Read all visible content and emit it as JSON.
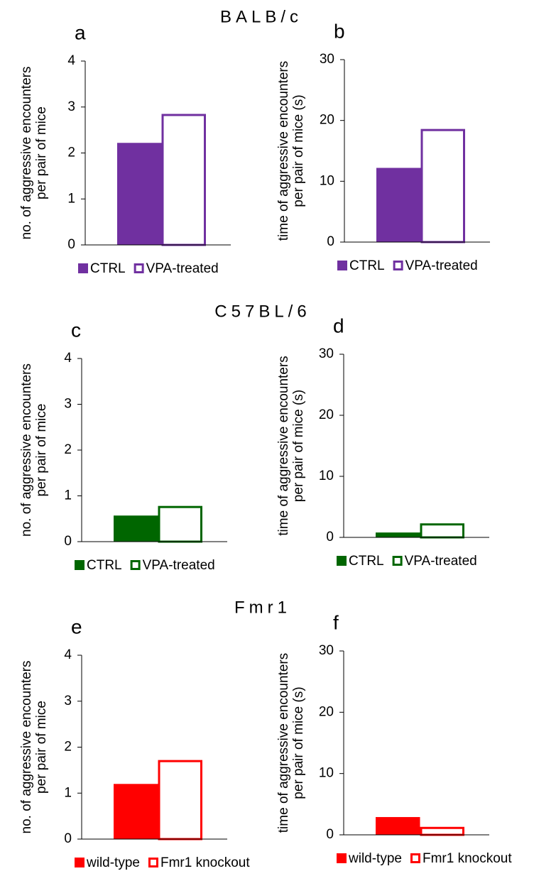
{
  "group_titles": [
    "BALB/c",
    "C57BL/6",
    "Fmr1"
  ],
  "chart_data": [
    {
      "type": "bar",
      "panel": "a",
      "ylabel": [
        "no. of aggressive encounters",
        "per pair of mice"
      ],
      "categories": [
        null
      ],
      "ylim": [
        0,
        4
      ],
      "yticks": [
        0,
        1,
        2,
        3,
        4
      ],
      "grid": false,
      "series": [
        {
          "name": "CTRL",
          "color": "#7030a0",
          "style": "filled",
          "values": [
            2.22
          ]
        },
        {
          "name": "VPA-treated",
          "color": "#7030a0",
          "style": "outline",
          "values": [
            2.85
          ]
        }
      ]
    },
    {
      "type": "bar",
      "panel": "b",
      "ylabel": [
        "time of aggressive encounters",
        "per pair of mice (s)"
      ],
      "categories": [
        null
      ],
      "ylim": [
        0,
        30
      ],
      "yticks": [
        0,
        10,
        20,
        30
      ],
      "grid": false,
      "series": [
        {
          "name": "CTRL",
          "color": "#7030a0",
          "style": "filled",
          "values": [
            12.2
          ]
        },
        {
          "name": "VPA-treated",
          "color": "#7030a0",
          "style": "outline",
          "values": [
            18.6
          ]
        }
      ]
    },
    {
      "type": "bar",
      "panel": "c",
      "ylabel": [
        "no. of aggressive encounters",
        "per pair of mice"
      ],
      "categories": [
        null
      ],
      "ylim": [
        0,
        4
      ],
      "yticks": [
        0,
        1,
        2,
        3,
        4
      ],
      "grid": false,
      "series": [
        {
          "name": "CTRL",
          "color": "#006600",
          "style": "filled",
          "values": [
            0.57
          ]
        },
        {
          "name": "VPA-treated",
          "color": "#006600",
          "style": "outline",
          "values": [
            0.78
          ]
        }
      ]
    },
    {
      "type": "bar",
      "panel": "d",
      "ylabel": [
        "time of aggressive encounters",
        "per pair of mice (s)"
      ],
      "categories": [
        null
      ],
      "ylim": [
        0,
        30
      ],
      "yticks": [
        0,
        10,
        20,
        30
      ],
      "grid": false,
      "series": [
        {
          "name": "CTRL",
          "color": "#006600",
          "style": "filled",
          "values": [
            0.8
          ]
        },
        {
          "name": "VPA-treated",
          "color": "#006600",
          "style": "outline",
          "values": [
            2.3
          ]
        }
      ]
    },
    {
      "type": "bar",
      "panel": "e",
      "ylabel": [
        "no. of aggressive encounters",
        "per pair of mice"
      ],
      "categories": [
        null
      ],
      "ylim": [
        0,
        4
      ],
      "yticks": [
        0,
        1,
        2,
        3,
        4
      ],
      "grid": false,
      "series": [
        {
          "name": "wild-type",
          "color": "#ff0000",
          "style": "filled",
          "values": [
            1.2
          ]
        },
        {
          "name": "Fmr1 knockout",
          "color": "#ff0000",
          "style": "outline",
          "values": [
            1.72
          ]
        }
      ]
    },
    {
      "type": "bar",
      "panel": "f",
      "ylabel": [
        "time of aggressive encounters",
        "per pair of mice (s)"
      ],
      "categories": [
        null
      ],
      "ylim": [
        0,
        30
      ],
      "yticks": [
        0,
        10,
        20,
        30
      ],
      "grid": false,
      "series": [
        {
          "name": "wild-type",
          "color": "#ff0000",
          "style": "filled",
          "values": [
            2.9
          ]
        },
        {
          "name": "Fmr1 knockout",
          "color": "#ff0000",
          "style": "outline",
          "values": [
            1.3
          ]
        }
      ]
    }
  ]
}
